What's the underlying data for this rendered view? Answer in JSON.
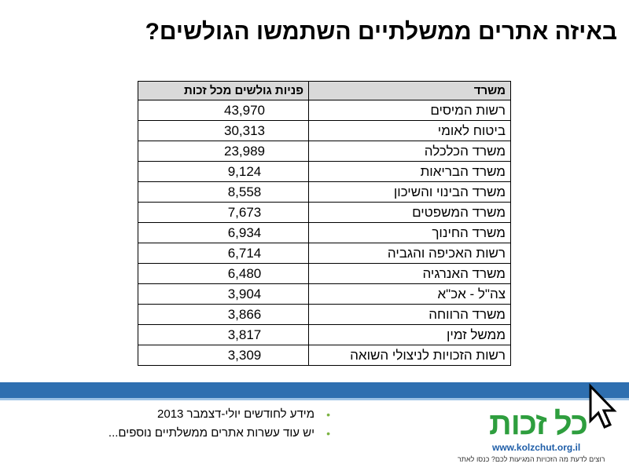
{
  "title": "באיזה אתרים ממשלתיים השתמשו הגולשים?",
  "table": {
    "header": [
      "משרד",
      "פניות גולשים  מכל זכות"
    ],
    "rows": [
      [
        "רשות המיסים",
        "43,970"
      ],
      [
        "ביטוח לאומי",
        "30,313"
      ],
      [
        "משרד הכלכלה",
        "23,989"
      ],
      [
        "משרד הבריאות",
        "9,124"
      ],
      [
        "משרד הבינוי והשיכון",
        "8,558"
      ],
      [
        "משרד המשפטים",
        "7,673"
      ],
      [
        "משרד החינוך",
        "6,934"
      ],
      [
        "רשות האכיפה והגביה",
        "6,714"
      ],
      [
        "משרד האנרגיה",
        "6,480"
      ],
      [
        "צה\"ל - אכ\"א",
        "3,904"
      ],
      [
        "משרד הרווחה",
        "3,866"
      ],
      [
        "ממשל זמין",
        "3,817"
      ],
      [
        "רשות הזכויות לניצולי השואה",
        "3,309"
      ]
    ]
  },
  "bullets": [
    "מידע לחודשים יולי-דצמבר 2013",
    "יש עוד עשרות אתרים ממשלתיים נוספים..."
  ],
  "logo": {
    "name": "כל זכות",
    "url": "www.kolzchut.org.il",
    "tagline": "רוצים לדעת מה הזכויות המגיעות לכם? כנסו לאתר"
  }
}
